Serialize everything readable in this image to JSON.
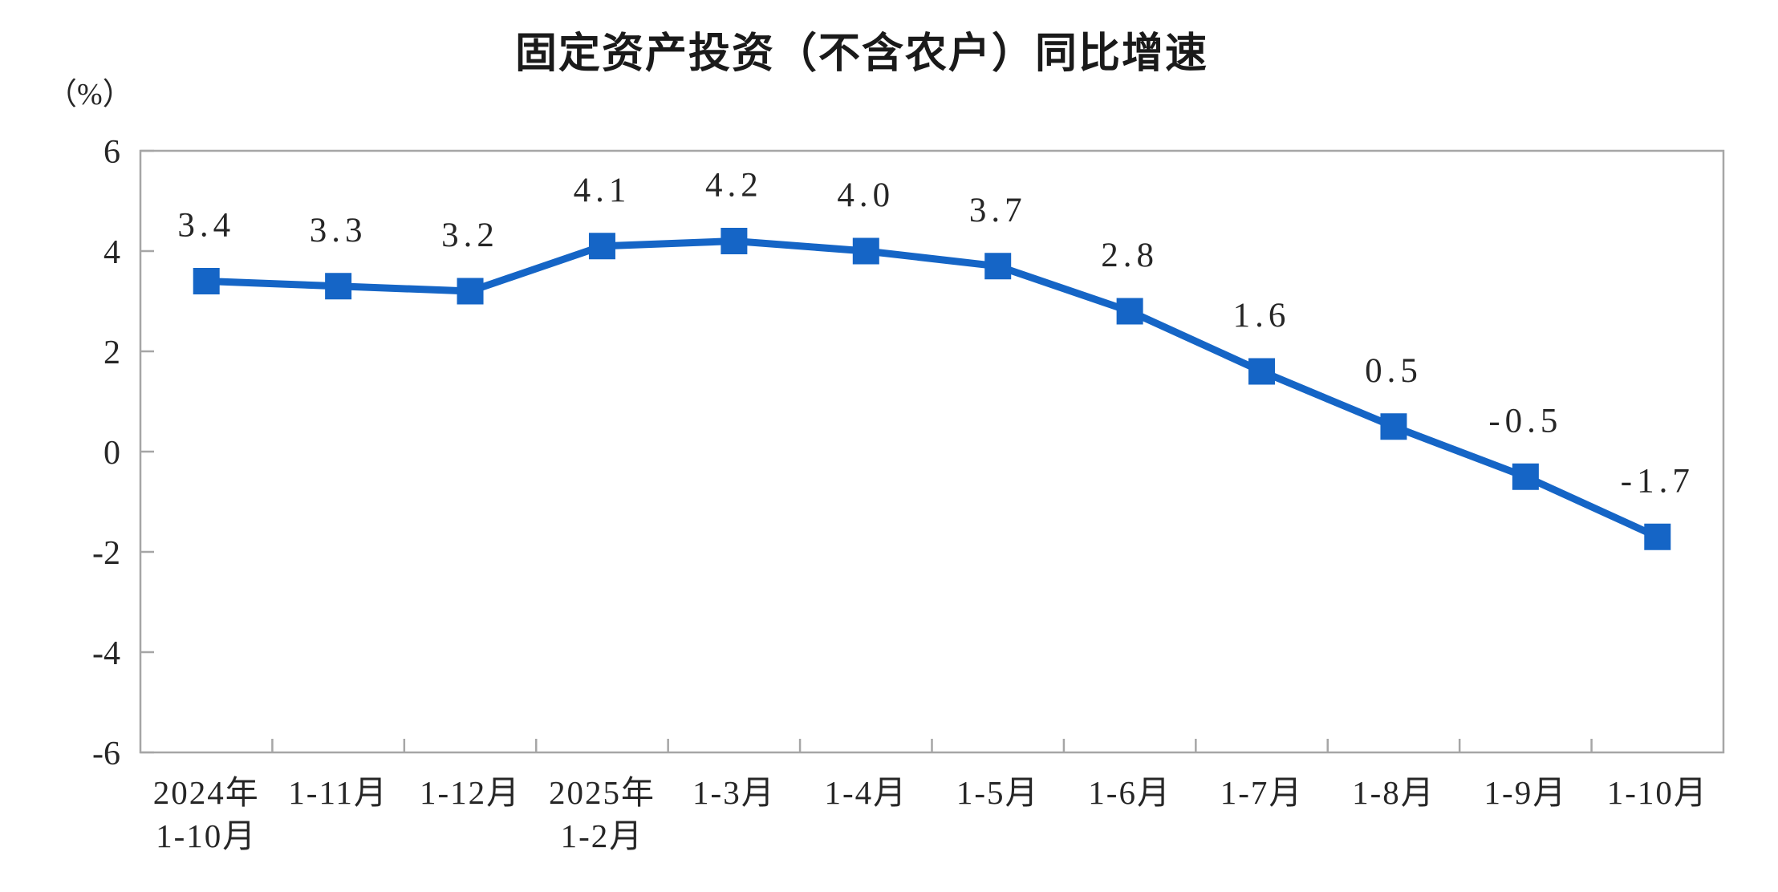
{
  "page": {
    "background": "#ffffff"
  },
  "chart_data": {
    "type": "line",
    "title": "固定资产投资（不含农户）同比增速",
    "ylabel": "（%）",
    "xlabel": "",
    "categories": [
      "2024年\n1-10月",
      "1-11月",
      "1-12月",
      "2025年\n1-2月",
      "1-3月",
      "1-4月",
      "1-5月",
      "1-6月",
      "1-7月",
      "1-8月",
      "1-9月",
      "1-10月"
    ],
    "series": [
      {
        "name": "固定资产投资（不含农户）同比增速",
        "values": [
          3.4,
          3.3,
          3.2,
          4.1,
          4.2,
          4.0,
          3.7,
          2.8,
          1.6,
          0.5,
          -0.5,
          -1.7
        ]
      }
    ],
    "data_labels": [
      "3.4",
      "3.3",
      "3.2",
      "4.1",
      "4.2",
      "4.0",
      "3.7",
      "2.8",
      "1.6",
      "0.5",
      "-0.5",
      "-1.7"
    ],
    "ylim": [
      -6,
      6
    ],
    "yticks": [
      6,
      4,
      2,
      0,
      -2,
      -4,
      -6
    ],
    "ytick_labels": [
      "6",
      "4",
      "2",
      "0",
      "-2",
      "-4",
      "-6"
    ],
    "grid": false,
    "legend_position": "none",
    "marker": "square",
    "colors": {
      "line": "#1565c6",
      "marker": "#1565c6",
      "axis": "#a6a6a6",
      "tick_text": "#262626",
      "data_label_text": "#262626",
      "title_text": "#1a1a1a"
    }
  }
}
